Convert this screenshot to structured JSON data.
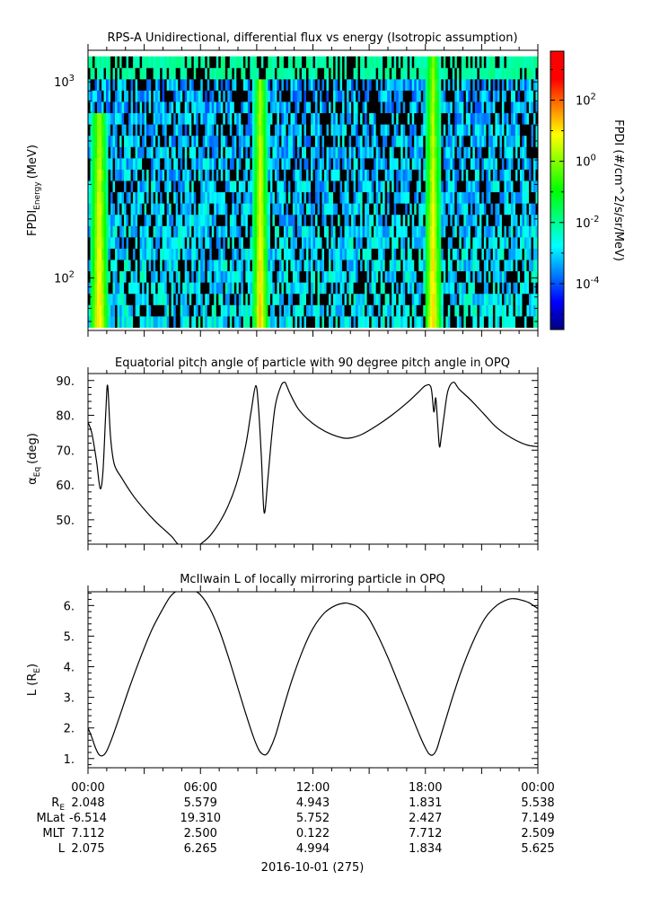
{
  "chart_data": [
    {
      "type": "heatmap",
      "title": "RPS-A Unidirectional, differential flux vs energy (Isotropic assumption)",
      "ylabel_main": "FPDI",
      "ylabel_sub": "Energy",
      "ylabel_unit": "(MeV)",
      "y_scale": "log",
      "ylim": [
        54,
        1450
      ],
      "y_ticks": [
        {
          "value": 100,
          "base": "10",
          "exp": "2"
        },
        {
          "value": 1000,
          "base": "10",
          "exp": "3"
        }
      ],
      "colorbar": {
        "label": "FPDI (#/cm^2/s/sr/MeV)",
        "scale": "log",
        "range_exp": [
          -5.5,
          3.6
        ],
        "colors": [
          "#000080",
          "#0000ff",
          "#0080ff",
          "#00ffff",
          "#00ff80",
          "#00ff00",
          "#80ff00",
          "#ffff00",
          "#ff8000",
          "#ff0000",
          "#ff0000"
        ],
        "ticks": [
          {
            "base": "10",
            "exp": "-4",
            "value_exp": -4
          },
          {
            "base": "10",
            "exp": "-2",
            "value_exp": -2
          },
          {
            "base": "10",
            "exp": "0",
            "value_exp": 0
          },
          {
            "base": "10",
            "exp": "2",
            "value_exp": 2
          }
        ]
      },
      "bands": [
        {
          "center_hour": 0.6,
          "width_hour": 0.45,
          "top_energy": 700
        },
        {
          "center_hour": 9.2,
          "width_hour": 0.4,
          "top_energy": 1000
        },
        {
          "center_hour": 18.4,
          "width_hour": 0.45,
          "top_energy": 1300
        }
      ]
    },
    {
      "type": "line",
      "title": "Equatorial pitch angle of particle with 90 degree pitch angle in OPQ",
      "ylabel_main": "α",
      "ylabel_sub": "Eq",
      "ylabel_unit": "(deg)",
      "xlim": [
        0,
        24
      ],
      "ylim": [
        43,
        92
      ],
      "y_ticks": [
        "50.",
        "60.",
        "70.",
        "80.",
        "90."
      ],
      "y_tick_values": [
        50,
        60,
        70,
        80,
        90
      ],
      "x": [
        0,
        0.2,
        0.45,
        0.65,
        0.8,
        0.95,
        1.05,
        1.2,
        1.4,
        1.8,
        2.4,
        3,
        3.6,
        4.1,
        4.5,
        4.8,
        5.2,
        5.6,
        6,
        6.6,
        7.3,
        7.9,
        8.4,
        8.7,
        8.95,
        9.1,
        9.25,
        9.4,
        9.6,
        9.8,
        10.0,
        10.3,
        10.5,
        10.6,
        10.8,
        11.2,
        11.7,
        12.3,
        13,
        13.6,
        14.0,
        14.6,
        15.4,
        16.2,
        17.0,
        17.6,
        18.0,
        18.3,
        18.45,
        18.55,
        18.65,
        18.75,
        18.85,
        19.0,
        19.2,
        19.5,
        19.8,
        20.4,
        21.1,
        21.8,
        22.6,
        23.4,
        24
      ],
      "y": [
        78,
        75,
        67,
        59,
        64,
        81,
        88.5,
        74,
        66,
        62,
        57,
        53,
        49.5,
        47,
        45,
        43,
        42,
        42,
        43,
        46,
        52,
        60,
        71,
        81,
        88.5,
        82,
        68,
        52,
        62,
        74,
        83,
        88.5,
        89.5,
        88.5,
        86,
        82,
        79,
        76.5,
        74.5,
        73.5,
        73.5,
        74.5,
        77,
        80,
        83.5,
        86.5,
        88.5,
        88,
        81,
        85,
        78,
        71,
        74,
        80,
        87,
        89.5,
        87.5,
        84.5,
        80.5,
        76.5,
        73.5,
        71.5,
        71
      ]
    },
    {
      "type": "line",
      "title": "McIlwain L of locally mirroring particle in OPQ",
      "ylabel_main": "L (R",
      "ylabel_sub": "E",
      "ylabel_unit": ")",
      "xlim": [
        0,
        24
      ],
      "ylim": [
        0.7,
        6.45
      ],
      "y_ticks": [
        "1.",
        "2.",
        "3.",
        "4.",
        "5.",
        "6."
      ],
      "y_tick_values": [
        1,
        2,
        3,
        4,
        5,
        6
      ],
      "x": [
        0,
        0.2,
        0.4,
        0.6,
        0.8,
        1.0,
        1.3,
        1.7,
        2.2,
        2.8,
        3.4,
        4.0,
        4.4,
        4.8,
        5.2,
        5.6,
        6.0,
        6.5,
        7.0,
        7.5,
        8.0,
        8.4,
        8.8,
        9.1,
        9.3,
        9.5,
        9.7,
        10.0,
        10.4,
        10.9,
        11.5,
        12.0,
        12.6,
        13.2,
        13.7,
        14.0,
        14.4,
        14.9,
        15.4,
        16.0,
        16.6,
        17.2,
        17.7,
        18.0,
        18.2,
        18.4,
        18.6,
        18.8,
        19.1,
        19.5,
        20.0,
        20.6,
        21.2,
        21.8,
        22.4,
        22.8,
        23.1,
        23.5,
        24
      ],
      "y": [
        2.0,
        1.7,
        1.35,
        1.12,
        1.1,
        1.25,
        1.7,
        2.4,
        3.3,
        4.3,
        5.2,
        5.9,
        6.3,
        6.5,
        6.55,
        6.5,
        6.35,
        5.9,
        5.2,
        4.3,
        3.3,
        2.5,
        1.75,
        1.3,
        1.15,
        1.13,
        1.3,
        1.75,
        2.6,
        3.6,
        4.6,
        5.25,
        5.75,
        6.0,
        6.08,
        6.05,
        5.95,
        5.65,
        5.1,
        4.3,
        3.4,
        2.5,
        1.75,
        1.35,
        1.15,
        1.12,
        1.3,
        1.7,
        2.3,
        3.1,
        4.0,
        4.9,
        5.6,
        6.0,
        6.2,
        6.22,
        6.18,
        6.1,
        5.9
      ]
    }
  ],
  "time_axis": {
    "labels": [
      "00:00",
      "06:00",
      "12:00",
      "18:00",
      "00:00"
    ],
    "label_hours": [
      0,
      6,
      12,
      18,
      24
    ],
    "date_label": "2016-10-01 (275)"
  },
  "ephemeris": {
    "rows": [
      {
        "label": "R",
        "sub": "E",
        "values": [
          "2.048",
          "5.579",
          "4.943",
          "1.831",
          "5.538"
        ]
      },
      {
        "label": "MLat",
        "sub": "",
        "values": [
          "-6.514",
          "19.310",
          "5.752",
          "2.427",
          "7.149"
        ]
      },
      {
        "label": "MLT",
        "sub": "",
        "values": [
          "7.112",
          "2.500",
          "0.122",
          "7.712",
          "2.509"
        ]
      },
      {
        "label": "L",
        "sub": "",
        "values": [
          "2.075",
          "6.265",
          "4.994",
          "1.834",
          "5.625"
        ]
      }
    ]
  },
  "colors": {
    "line": "#000000",
    "axis": "#000000",
    "background": "#ffffff"
  }
}
